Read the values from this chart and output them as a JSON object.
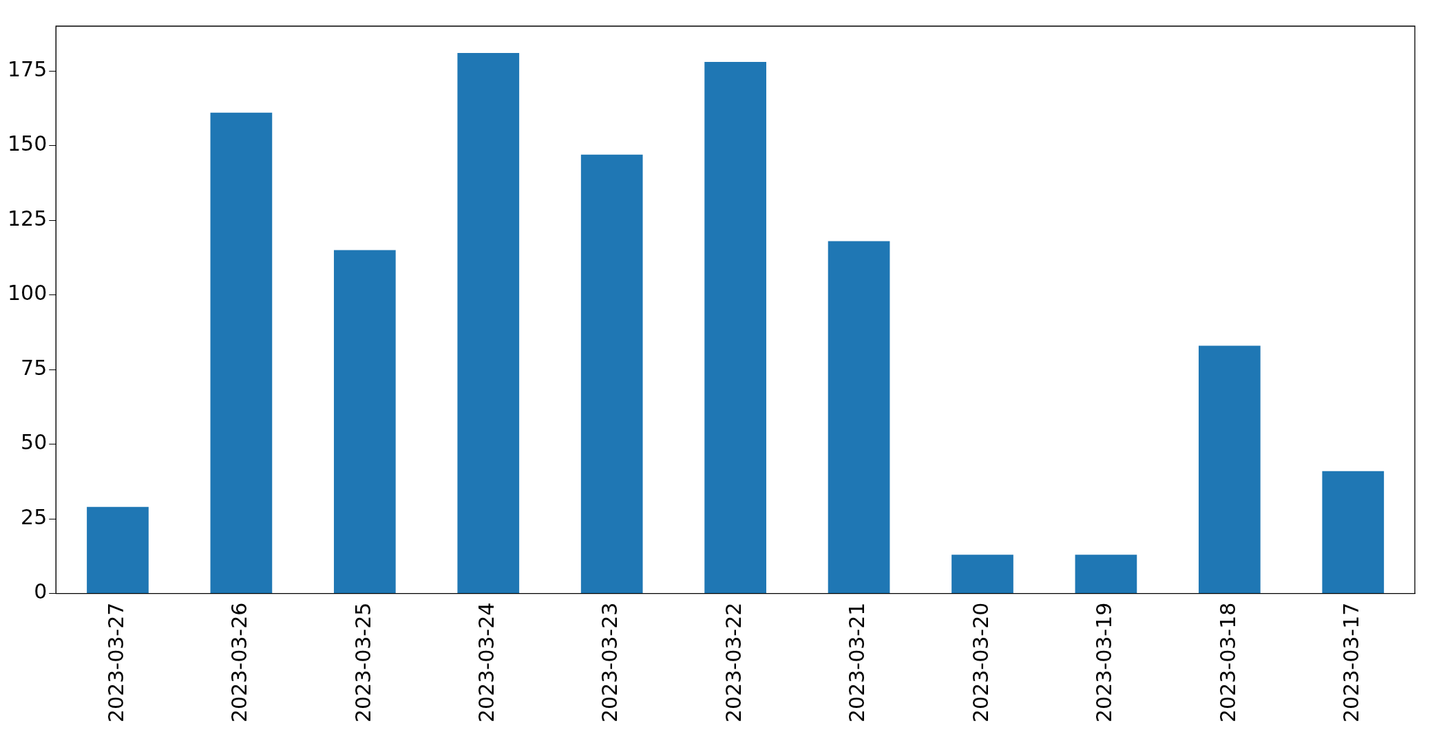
{
  "chart_data": {
    "type": "bar",
    "categories": [
      "2023-03-27",
      "2023-03-26",
      "2023-03-25",
      "2023-03-24",
      "2023-03-23",
      "2023-03-22",
      "2023-03-21",
      "2023-03-20",
      "2023-03-19",
      "2023-03-18",
      "2023-03-17"
    ],
    "values": [
      29,
      161,
      115,
      181,
      147,
      178,
      118,
      13,
      13,
      83,
      41
    ],
    "color": "#1f77b4",
    "ylim": [
      0,
      190
    ],
    "yticks": [
      0,
      25,
      50,
      75,
      100,
      125,
      150,
      175
    ],
    "grid": false,
    "legend": false
  }
}
